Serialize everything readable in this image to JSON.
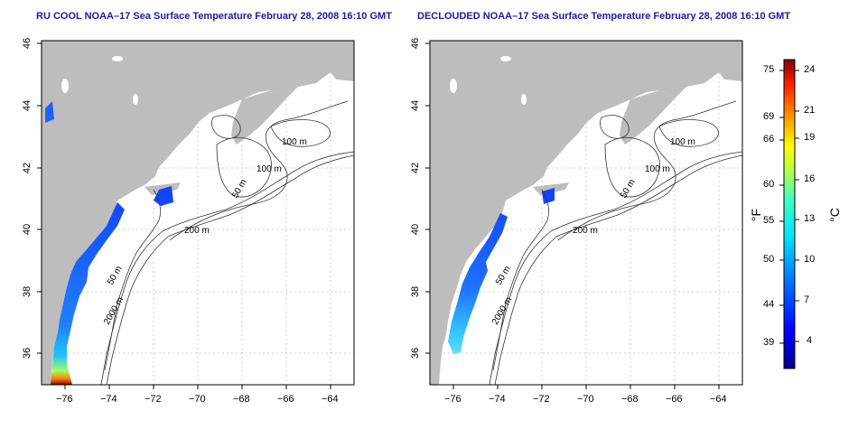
{
  "left_panel": {
    "title": "RU COOL NOAA–17 Sea Surface Temperature February 28, 2008 16:10 GMT"
  },
  "right_panel": {
    "title": "DECLOUDED NOAA–17 Sea Surface Temperature February 28, 2008 16:10 GMT"
  },
  "axes": {
    "x_ticks": [
      "−76",
      "−74",
      "−72",
      "−70",
      "−68",
      "−66",
      "−64"
    ],
    "y_ticks": [
      "46",
      "44",
      "42",
      "40",
      "38",
      "36"
    ]
  },
  "contours": {
    "labels": [
      "100 m",
      "100 m",
      "50 m",
      "200 m",
      "50 m",
      "2000 m"
    ]
  },
  "colorbar": {
    "fahrenheit_ticks": [
      "75",
      "69",
      "66",
      "60",
      "55",
      "50",
      "44",
      "39"
    ],
    "celsius_ticks": [
      "24",
      "21",
      "19",
      "16",
      "13",
      "10",
      "7",
      "4"
    ],
    "fahrenheit_unit": "°F",
    "celsius_unit": "°C"
  },
  "colors": {
    "land": "#bdbdbd",
    "title": "#1a1aa6",
    "cold": "#0000a8",
    "warm": "#8a0000"
  }
}
